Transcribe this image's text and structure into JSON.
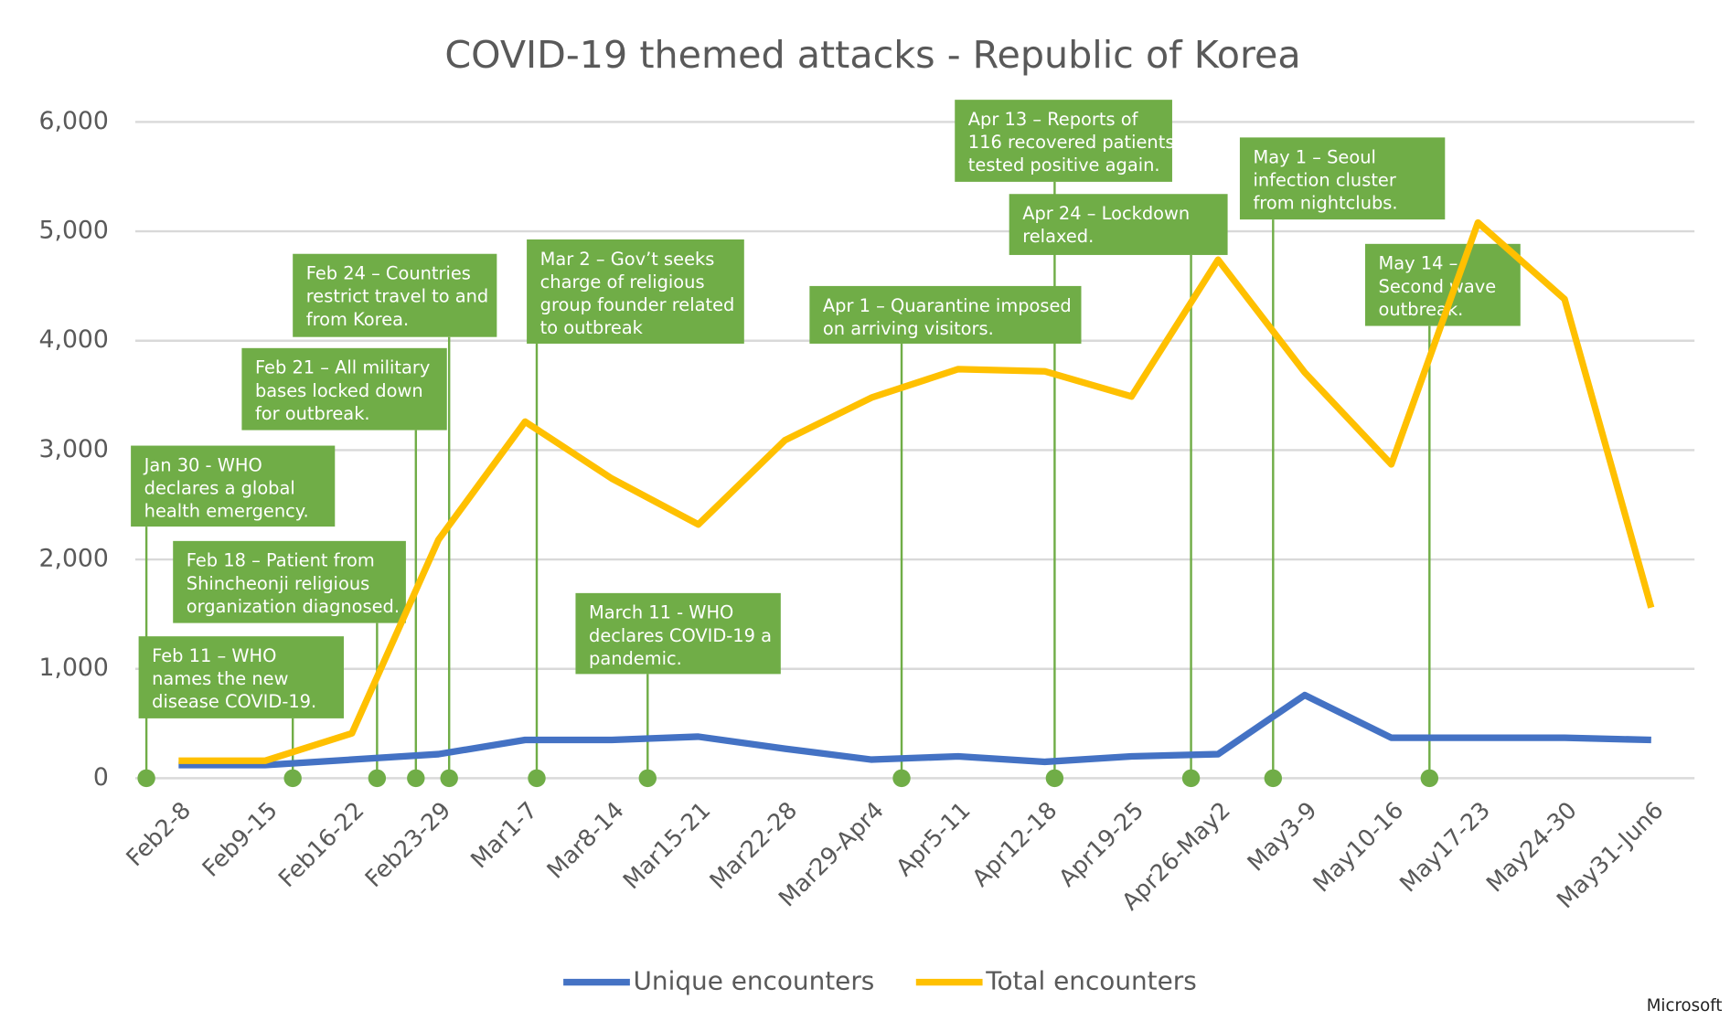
{
  "chart_data": {
    "type": "line",
    "title": "COVID-19 themed attacks - Republic of Korea",
    "categories": [
      "Feb2-8",
      "Feb9-15",
      "Feb16-22",
      "Feb23-29",
      "Mar1-7",
      "Mar8-14",
      "Mar15-21",
      "Mar22-28",
      "Mar29-Apr4",
      "Apr5-11",
      "Apr12-18",
      "Apr19-25",
      "Apr26-May2",
      "May3-9",
      "May10-16",
      "May17-23",
      "May24-30",
      "May31-Jun6"
    ],
    "series": [
      {
        "name": "Unique encounters",
        "color": "#4472c4",
        "values": [
          120,
          120,
          170,
          220,
          350,
          350,
          380,
          270,
          170,
          200,
          150,
          200,
          220,
          760,
          370,
          370,
          370,
          350
        ]
      },
      {
        "name": "Total encounters",
        "color": "#ffc000",
        "values": [
          160,
          160,
          410,
          2180,
          3260,
          2740,
          2320,
          3090,
          3480,
          3740,
          3720,
          3490,
          4740,
          3710,
          2870,
          5080,
          4380,
          1560
        ]
      }
    ],
    "ylim": [
      0,
      6000
    ],
    "yticks": [
      {
        "value": 0,
        "label": "0"
      },
      {
        "value": 1000,
        "label": "1,000"
      },
      {
        "value": 2000,
        "label": "2,000"
      },
      {
        "value": 3000,
        "label": "3,000"
      },
      {
        "value": 4000,
        "label": "4,000"
      },
      {
        "value": 5000,
        "label": "5,000"
      },
      {
        "value": 6000,
        "label": "6,000"
      }
    ],
    "grid": true,
    "annotations": [
      {
        "lines": [
          "Jan 30 - WHO",
          "declares a global",
          "health emergency."
        ]
      },
      {
        "lines": [
          "Feb 11 – WHO",
          "names the new",
          "disease COVID-19."
        ]
      },
      {
        "lines": [
          "Feb 18 – Patient from",
          "Shincheonji religious",
          "organization diagnosed."
        ]
      },
      {
        "lines": [
          "Feb 21 – All military",
          "bases locked down",
          "for outbreak."
        ]
      },
      {
        "lines": [
          "Feb 24 – Countries",
          "restrict travel to and",
          "from Korea."
        ]
      },
      {
        "lines": [
          "Mar 2 –  Gov’t seeks",
          "charge of religious",
          "group founder related",
          "to outbreak"
        ]
      },
      {
        "lines": [
          "March 11 - WHO",
          "declares COVID-19 a",
          "pandemic."
        ]
      },
      {
        "lines": [
          "Apr 1 – Quarantine imposed",
          "on arriving visitors."
        ]
      },
      {
        "lines": [
          "Apr 13 – Reports of",
          "116 recovered patients",
          "tested positive again."
        ]
      },
      {
        "lines": [
          "Apr 24 – Lockdown",
          "relaxed."
        ]
      },
      {
        "lines": [
          "May 1 – Seoul",
          "infection cluster",
          "from nightclubs."
        ]
      },
      {
        "lines": [
          "May 14 –",
          "Second wave",
          "outbreak."
        ]
      }
    ],
    "source": "Microsoft"
  }
}
